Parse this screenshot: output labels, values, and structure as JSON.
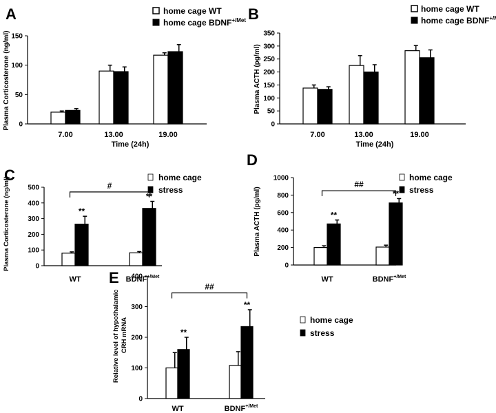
{
  "chart_data": [
    {
      "type": "bar",
      "panel_label": "A",
      "ylabel": "Plasma Corticosterone (ng/ml)",
      "xlabel": "Time (24h)",
      "ylim": [
        0,
        150
      ],
      "yticks": [
        0,
        50,
        100,
        150
      ],
      "categories": [
        "7.00",
        "13.00",
        "19.00"
      ],
      "series": [
        {
          "name": "home cage WT",
          "fill": "#ffffff",
          "values": [
            20,
            90,
            117
          ],
          "errors": [
            2,
            10,
            4
          ]
        },
        {
          "name": "home cage BDNF+/Met",
          "fill": "#000000",
          "values": [
            23,
            89,
            123
          ],
          "errors": [
            3,
            8,
            12
          ]
        }
      ],
      "annotations": []
    },
    {
      "type": "bar",
      "panel_label": "B",
      "ylabel": "Plasma ACTH (pg/ml)",
      "xlabel": "Time (24h)",
      "ylim": [
        0,
        350
      ],
      "yticks": [
        0,
        50,
        100,
        150,
        200,
        250,
        300,
        350
      ],
      "categories": [
        "7.00",
        "13.00",
        "19.00"
      ],
      "series": [
        {
          "name": "home cage WT",
          "fill": "#ffffff",
          "values": [
            138,
            225,
            282
          ],
          "errors": [
            12,
            38,
            20
          ]
        },
        {
          "name": "home cage BDNF+/Met",
          "fill": "#000000",
          "values": [
            133,
            200,
            255
          ],
          "errors": [
            10,
            28,
            30
          ]
        }
      ],
      "annotations": []
    },
    {
      "type": "bar",
      "panel_label": "C",
      "ylabel": "Plasma Corticosterone (ng/ml)",
      "xlabel": "",
      "ylim": [
        0,
        500
      ],
      "yticks": [
        0,
        100,
        200,
        300,
        400,
        500
      ],
      "categories": [
        "WT",
        "BDNF+/Met"
      ],
      "series": [
        {
          "name": "home cage",
          "fill": "#ffffff",
          "values": [
            80,
            82
          ],
          "errors": [
            8,
            8
          ]
        },
        {
          "name": "stress",
          "fill": "#000000",
          "values": [
            265,
            365
          ],
          "errors": [
            50,
            45
          ]
        }
      ],
      "annotations": [
        {
          "text": "**",
          "category": 0,
          "series": 1
        },
        {
          "text": "**",
          "category": 1,
          "series": 1
        },
        {
          "text": "#",
          "bracket": [
            0,
            1
          ],
          "series": 1,
          "at_value": 470
        }
      ]
    },
    {
      "type": "bar",
      "panel_label": "D",
      "ylabel": "Plasma ACTH (pg/ml)",
      "xlabel": "",
      "ylim": [
        0,
        1000
      ],
      "yticks": [
        0,
        200,
        400,
        600,
        800,
        1000
      ],
      "categories": [
        "WT",
        "BDNF+/Met"
      ],
      "series": [
        {
          "name": "home cage",
          "fill": "#ffffff",
          "values": [
            200,
            205
          ],
          "errors": [
            20,
            22
          ]
        },
        {
          "name": "stress",
          "fill": "#000000",
          "values": [
            470,
            710
          ],
          "errors": [
            45,
            50
          ]
        }
      ],
      "annotations": [
        {
          "text": "**",
          "category": 0,
          "series": 1
        },
        {
          "text": "**",
          "category": 1,
          "series": 1
        },
        {
          "text": "##",
          "bracket": [
            0,
            1
          ],
          "series": 1,
          "at_value": 850
        }
      ]
    },
    {
      "type": "bar",
      "panel_label": "E",
      "ylabel": "Relative level of hypothalamic CRH mRNA",
      "xlabel": "",
      "ylim": [
        0,
        400
      ],
      "yticks": [
        0,
        100,
        200,
        300,
        400
      ],
      "categories": [
        "WT",
        "BDNF+/Met"
      ],
      "series": [
        {
          "name": "home cage",
          "fill": "#ffffff",
          "values": [
            100,
            108
          ],
          "errors": [
            50,
            45
          ]
        },
        {
          "name": "stress",
          "fill": "#000000",
          "values": [
            160,
            235
          ],
          "errors": [
            40,
            55
          ]
        }
      ],
      "annotations": [
        {
          "text": "**",
          "category": 0,
          "series": 1
        },
        {
          "text": "**",
          "category": 1,
          "series": 1
        },
        {
          "text": "##",
          "bracket": [
            0,
            1
          ],
          "series": 1,
          "at_value": 345
        }
      ]
    }
  ]
}
